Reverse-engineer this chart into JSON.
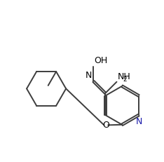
{
  "background_color": "#ffffff",
  "line_color": "#3d3d3d",
  "text_color": "#000000",
  "n_color": "#1a1aaa",
  "figsize": [
    2.34,
    2.31
  ],
  "dpi": 100,
  "lw": 1.4,
  "font_size": 9.0,
  "font_size_sub": 6.5,
  "xlim": [
    0.05,
    2.29
  ],
  "ylim": [
    0.05,
    2.26
  ]
}
